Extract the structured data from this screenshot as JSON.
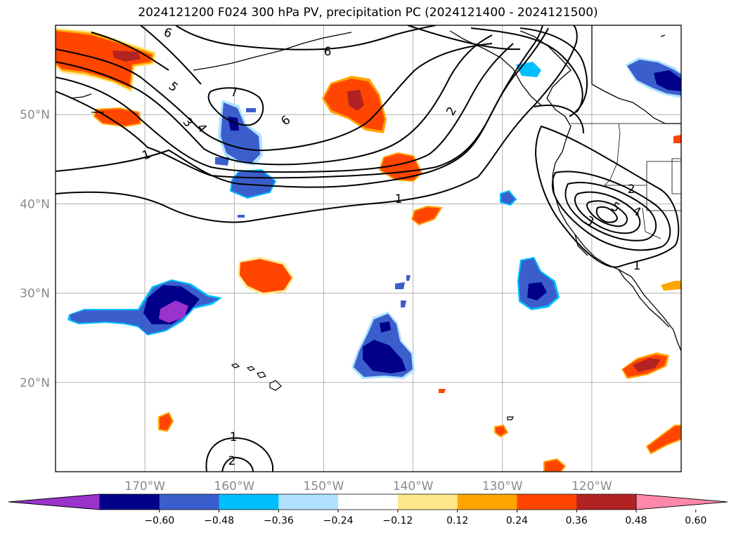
{
  "title": "2024121200 F024 300 hPa PV, precipitation PC (2024121400 - 2024121500)",
  "map": {
    "extent": {
      "lon_min": -180,
      "lon_max": -110,
      "lat_min": 10,
      "lat_max": 60
    },
    "gridlines": true,
    "lat_ticks": [
      {
        "value": 50,
        "label": "50°N"
      },
      {
        "value": 40,
        "label": "40°N"
      },
      {
        "value": 30,
        "label": "30°N"
      },
      {
        "value": 20,
        "label": "20°N"
      }
    ],
    "lon_ticks": [
      {
        "value": -170,
        "label": "170°W"
      },
      {
        "value": -160,
        "label": "160°W"
      },
      {
        "value": -150,
        "label": "150°W"
      },
      {
        "value": -140,
        "label": "140°W"
      },
      {
        "value": -130,
        "label": "130°W"
      },
      {
        "value": -120,
        "label": "120°W"
      }
    ],
    "pv_contour_labels": [
      "6",
      "6",
      "7",
      "6",
      "2",
      "5",
      "3",
      "4",
      "1",
      "1",
      "2",
      "5",
      "4",
      "3",
      "1",
      "1",
      "2"
    ]
  },
  "colorbar": {
    "extend": "both",
    "ticks": [
      "−0.60",
      "−0.48",
      "−0.36",
      "−0.24",
      "−0.12",
      "0.12",
      "0.24",
      "0.36",
      "0.48",
      "0.60"
    ],
    "colors": [
      "#9933cc",
      "#00008b",
      "#3a5fcd",
      "#00bfff",
      "#b0e2ff",
      "#ffffff",
      "#ffe88c",
      "#ffa500",
      "#ff4500",
      "#b22222",
      "#ff88aa"
    ]
  }
}
